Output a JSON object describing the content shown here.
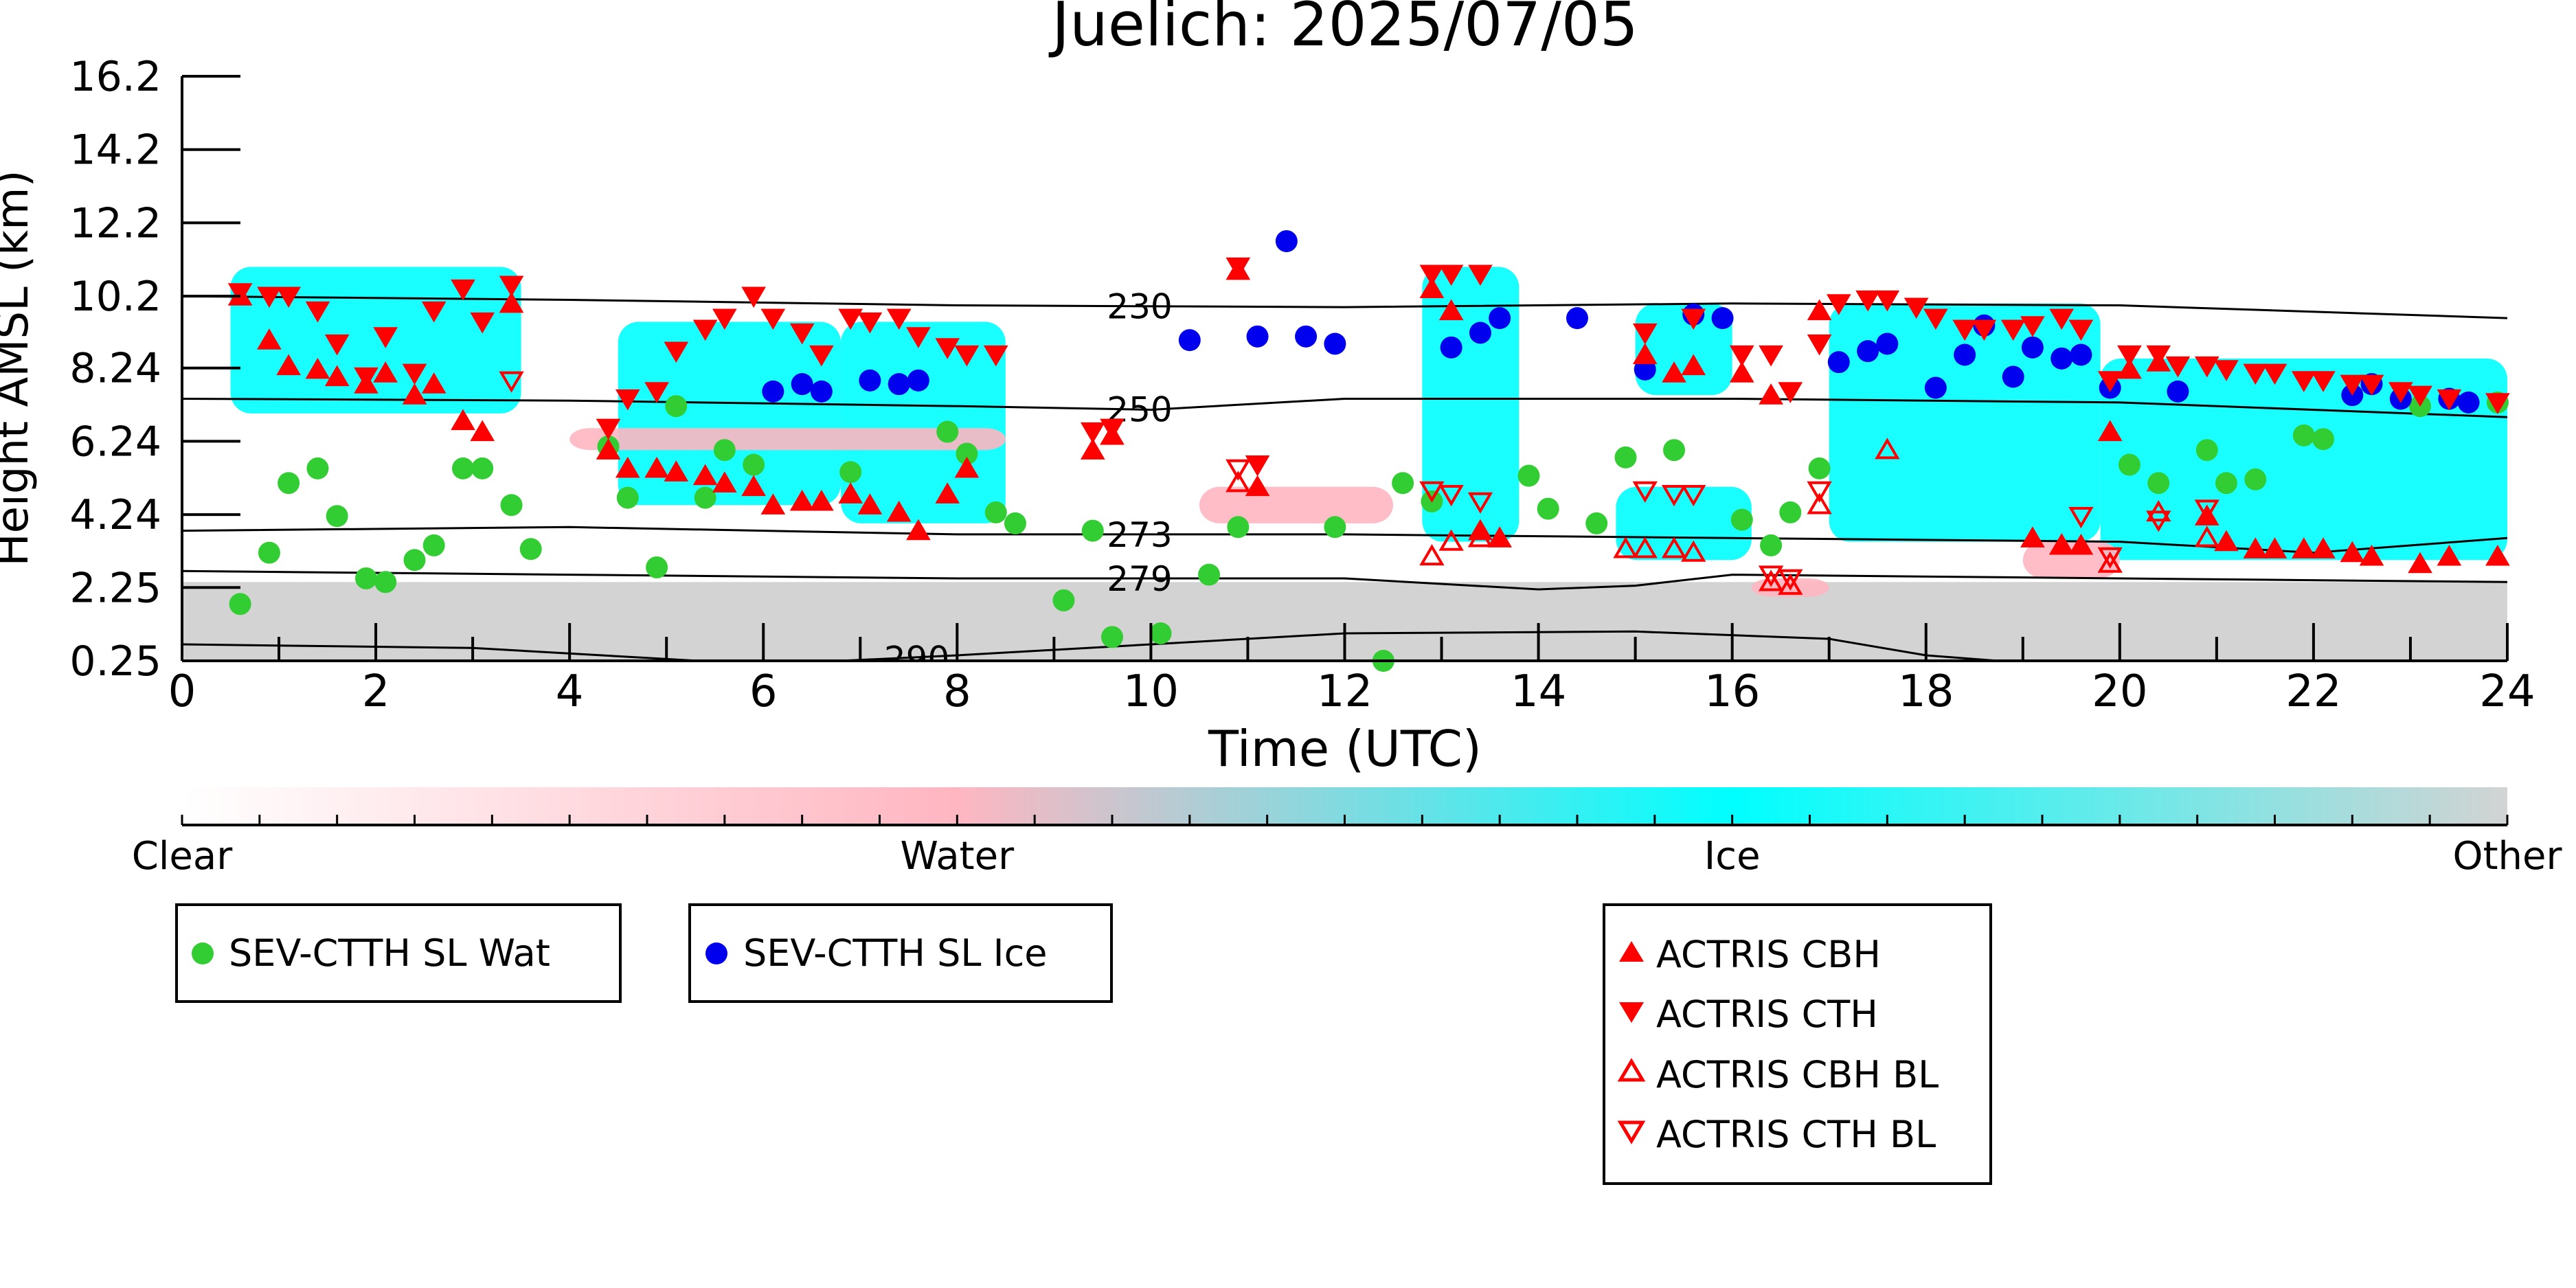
{
  "chart_data": {
    "type": "scatter",
    "title": "Juelich: 2025/07/05",
    "xlabel": "Time (UTC)",
    "ylabel": "Height AMSL (km)",
    "xlim": [
      0,
      24
    ],
    "ylim": [
      0.25,
      16.2
    ],
    "x_ticks": [
      0,
      2,
      4,
      6,
      8,
      10,
      12,
      14,
      16,
      18,
      20,
      22,
      24
    ],
    "y_ticks": [
      "0.25",
      "2.25",
      "4.24",
      "6.24",
      "8.24",
      "10.2",
      "12.2",
      "14.2",
      "16.2"
    ],
    "colorbar": {
      "labels": [
        "Clear",
        "Water",
        "Ice",
        "Other"
      ],
      "colors": [
        "#ffffff",
        "#ffb6c1",
        "#00ffff",
        "#d3d3d3"
      ]
    },
    "isotherms": [
      {
        "label": "230",
        "label_x": 9.6,
        "x": [
          0,
          4,
          8,
          12,
          16,
          20,
          24
        ],
        "y": [
          10.2,
          10.1,
          9.95,
          9.9,
          10.0,
          9.95,
          9.6
        ]
      },
      {
        "label": "250",
        "label_x": 9.6,
        "x": [
          0,
          4,
          8,
          10,
          12,
          16,
          20,
          24
        ],
        "y": [
          7.4,
          7.35,
          7.2,
          7.1,
          7.4,
          7.4,
          7.3,
          6.9
        ]
      },
      {
        "label": "273",
        "label_x": 9.6,
        "x": [
          0,
          4,
          8,
          12,
          16,
          20,
          22,
          24
        ],
        "y": [
          3.8,
          3.9,
          3.7,
          3.7,
          3.6,
          3.5,
          3.2,
          3.6
        ]
      },
      {
        "label": "279",
        "label_x": 9.6,
        "x": [
          0,
          4,
          8,
          12,
          14,
          15,
          16,
          20,
          24
        ],
        "y": [
          2.7,
          2.6,
          2.5,
          2.5,
          2.2,
          2.3,
          2.6,
          2.5,
          2.4
        ]
      },
      {
        "label": "290",
        "label_x": 7.3,
        "x": [
          0,
          3,
          6,
          8,
          12,
          15,
          17,
          18,
          19,
          20
        ],
        "y": [
          0.7,
          0.6,
          0.15,
          0.4,
          1.0,
          1.05,
          0.85,
          0.4,
          0.2,
          0.0
        ]
      }
    ],
    "cloud_regions": [
      {
        "class": "Other",
        "x": [
          0,
          24
        ],
        "y": [
          0.25,
          2.4
        ]
      },
      {
        "class": "Ice",
        "x": [
          0.5,
          3.5
        ],
        "y": [
          7.0,
          11.0
        ]
      },
      {
        "class": "Ice",
        "x": [
          4.5,
          6.8
        ],
        "y": [
          4.5,
          9.5
        ]
      },
      {
        "class": "Ice",
        "x": [
          6.8,
          8.5
        ],
        "y": [
          4.0,
          9.5
        ]
      },
      {
        "class": "Ice",
        "x": [
          12.8,
          13.8
        ],
        "y": [
          3.5,
          11.0
        ]
      },
      {
        "class": "Ice",
        "x": [
          14.8,
          16.2
        ],
        "y": [
          3.0,
          5.0
        ]
      },
      {
        "class": "Ice",
        "x": [
          15.0,
          16.0
        ],
        "y": [
          7.5,
          10.0
        ]
      },
      {
        "class": "Ice",
        "x": [
          17.0,
          19.8
        ],
        "y": [
          3.5,
          10.0
        ]
      },
      {
        "class": "Ice",
        "x": [
          19.8,
          24.0
        ],
        "y": [
          3.0,
          8.5
        ]
      },
      {
        "class": "Water",
        "x": [
          4.0,
          8.5
        ],
        "y": [
          6.0,
          6.6
        ]
      },
      {
        "class": "Water",
        "x": [
          10.5,
          12.5
        ],
        "y": [
          4.0,
          5.0
        ]
      },
      {
        "class": "Water",
        "x": [
          16.2,
          17.0
        ],
        "y": [
          2.0,
          2.5
        ]
      },
      {
        "class": "Water",
        "x": [
          19.0,
          20.0
        ],
        "y": [
          2.5,
          3.5
        ]
      }
    ],
    "series": [
      {
        "name": "SEV-CTTH SL Wat",
        "color": "#32cd32",
        "marker": "circle",
        "x": [
          0.6,
          0.9,
          1.1,
          1.4,
          1.6,
          1.9,
          2.1,
          2.4,
          2.6,
          2.9,
          3.1,
          3.4,
          3.6,
          4.4,
          4.6,
          4.9,
          5.1,
          5.4,
          5.6,
          5.9,
          6.9,
          7.9,
          8.1,
          8.4,
          8.6,
          9.1,
          9.4,
          9.6,
          10.1,
          10.6,
          10.9,
          11.9,
          12.4,
          12.6,
          12.9,
          13.9,
          14.1,
          14.6,
          14.9,
          15.4,
          16.1,
          16.4,
          16.6,
          16.9,
          20.1,
          20.4,
          20.9,
          21.1,
          21.4,
          21.9,
          22.1,
          23.1,
          23.9
        ],
        "y": [
          1.8,
          3.2,
          5.1,
          5.5,
          4.2,
          2.5,
          2.4,
          3.0,
          3.4,
          5.5,
          5.5,
          4.5,
          3.3,
          6.1,
          4.7,
          2.8,
          7.2,
          4.7,
          6.0,
          5.6,
          5.4,
          6.5,
          5.9,
          4.3,
          4.0,
          1.9,
          3.8,
          0.9,
          1.0,
          2.6,
          3.9,
          3.9,
          0.25,
          5.1,
          4.6,
          5.3,
          4.4,
          4.0,
          5.8,
          6.0,
          4.1,
          3.4,
          4.3,
          5.5,
          5.6,
          5.1,
          6.0,
          5.1,
          5.2,
          6.4,
          6.3,
          7.2,
          7.3
        ]
      },
      {
        "name": "SEV-CTTH SL Ice",
        "color": "#0000ee",
        "marker": "circle",
        "x": [
          6.1,
          6.4,
          6.6,
          7.1,
          7.4,
          7.6,
          10.4,
          11.1,
          11.4,
          11.6,
          11.9,
          13.1,
          13.4,
          13.6,
          14.4,
          15.1,
          15.6,
          15.9,
          17.1,
          17.4,
          17.6,
          18.1,
          18.4,
          18.6,
          18.9,
          19.1,
          19.4,
          19.6,
          19.9,
          20.6,
          22.4,
          22.6,
          22.9,
          23.4,
          23.6
        ],
        "y": [
          7.6,
          7.8,
          7.6,
          7.9,
          7.8,
          7.9,
          9.0,
          9.1,
          11.7,
          9.1,
          8.9,
          8.8,
          9.2,
          9.6,
          9.6,
          8.2,
          9.7,
          9.6,
          8.4,
          8.7,
          8.9,
          7.7,
          8.6,
          9.4,
          8.0,
          8.8,
          8.5,
          8.6,
          7.7,
          7.6,
          7.5,
          7.8,
          7.4,
          7.4,
          7.3
        ]
      },
      {
        "name": "ACTRIS CBH",
        "color": "#ff0000",
        "marker": "triangle-up",
        "x": [
          0.6,
          0.9,
          1.1,
          1.4,
          1.6,
          1.9,
          2.1,
          2.4,
          2.6,
          2.9,
          3.1,
          3.4,
          4.4,
          4.6,
          4.9,
          5.1,
          5.4,
          5.6,
          5.9,
          6.1,
          6.4,
          6.6,
          6.9,
          7.1,
          7.4,
          7.6,
          7.9,
          8.1,
          9.4,
          9.6,
          10.9,
          11.1,
          12.9,
          13.1,
          13.4,
          13.6,
          15.1,
          15.4,
          15.6,
          16.1,
          16.4,
          16.9,
          19.1,
          19.4,
          19.6,
          19.9,
          20.1,
          20.4,
          20.9,
          21.1,
          21.4,
          21.6,
          21.9,
          22.1,
          22.4,
          22.6,
          23.1,
          23.4,
          23.9
        ],
        "y": [
          10.2,
          9.0,
          8.3,
          8.2,
          8.0,
          7.8,
          8.1,
          7.5,
          7.8,
          6.8,
          6.5,
          10.0,
          6.0,
          5.5,
          5.5,
          5.4,
          5.3,
          5.1,
          5.0,
          4.5,
          4.6,
          4.6,
          4.8,
          4.5,
          4.3,
          3.8,
          4.8,
          5.5,
          6.0,
          6.4,
          10.9,
          5.0,
          10.4,
          9.8,
          3.8,
          3.6,
          8.6,
          8.1,
          8.3,
          8.1,
          7.5,
          9.8,
          3.6,
          3.4,
          3.4,
          6.5,
          8.2,
          8.4,
          4.2,
          3.5,
          3.3,
          3.3,
          3.3,
          3.3,
          3.2,
          3.1,
          2.9,
          3.1,
          3.1
        ]
      },
      {
        "name": "ACTRIS CTH",
        "color": "#ff0000",
        "marker": "triangle-down",
        "x": [
          0.6,
          0.9,
          1.1,
          1.4,
          1.6,
          1.9,
          2.1,
          2.4,
          2.6,
          2.9,
          3.1,
          3.4,
          4.4,
          4.6,
          4.9,
          5.1,
          5.4,
          5.6,
          5.9,
          6.1,
          6.4,
          6.6,
          6.9,
          7.1,
          7.4,
          7.6,
          7.9,
          8.1,
          8.4,
          9.4,
          9.6,
          10.9,
          11.1,
          12.9,
          13.1,
          13.4,
          15.1,
          15.6,
          16.1,
          16.4,
          16.6,
          16.9,
          17.1,
          17.4,
          17.6,
          17.9,
          18.1,
          18.4,
          18.6,
          18.9,
          19.1,
          19.4,
          19.6,
          19.9,
          20.1,
          20.4,
          20.6,
          20.9,
          21.1,
          21.4,
          21.6,
          21.9,
          22.1,
          22.4,
          22.6,
          22.9,
          23.1,
          23.4,
          23.9
        ],
        "y": [
          10.3,
          10.2,
          10.2,
          9.8,
          8.9,
          8.0,
          9.1,
          8.1,
          9.8,
          10.4,
          9.5,
          10.5,
          6.6,
          7.4,
          7.6,
          8.7,
          9.3,
          9.6,
          10.2,
          9.6,
          9.2,
          8.6,
          9.6,
          9.5,
          9.6,
          9.1,
          8.8,
          8.6,
          8.6,
          6.5,
          6.6,
          11.0,
          5.6,
          10.8,
          10.8,
          10.8,
          9.2,
          9.6,
          8.6,
          8.6,
          7.6,
          8.9,
          10.0,
          10.1,
          10.1,
          9.9,
          9.6,
          9.3,
          9.3,
          9.3,
          9.4,
          9.6,
          9.3,
          7.9,
          8.6,
          8.6,
          8.3,
          8.3,
          8.2,
          8.1,
          8.1,
          7.9,
          7.9,
          7.8,
          7.8,
          7.6,
          7.5,
          7.4,
          7.3
        ]
      },
      {
        "name": "ACTRIS CBH BL",
        "color": "#ff0000",
        "marker": "triangle-up-open",
        "x": [
          10.9,
          12.9,
          13.1,
          13.4,
          14.9,
          15.1,
          15.4,
          15.6,
          16.4,
          16.6,
          16.9,
          17.6,
          19.4,
          19.9,
          20.4,
          20.9
        ],
        "y": [
          5.1,
          3.1,
          3.5,
          3.6,
          3.3,
          3.3,
          3.3,
          3.2,
          2.4,
          2.3,
          4.5,
          6.0,
          3.4,
          2.9,
          4.3,
          3.6
        ]
      },
      {
        "name": "ACTRIS CTH BL",
        "color": "#ff0000",
        "marker": "triangle-down-open",
        "x": [
          3.4,
          10.9,
          12.9,
          13.1,
          13.4,
          15.1,
          15.4,
          15.6,
          16.4,
          16.6,
          16.9,
          19.6,
          19.9,
          20.4,
          20.9
        ],
        "y": [
          7.9,
          5.5,
          4.9,
          4.8,
          4.6,
          4.9,
          4.8,
          4.8,
          2.6,
          2.5,
          4.9,
          4.2,
          3.1,
          4.1,
          4.4
        ]
      }
    ],
    "legends": [
      {
        "entries": [
          "SEV-CTTH SL Wat"
        ]
      },
      {
        "entries": [
          "SEV-CTTH SL Ice"
        ]
      },
      {
        "entries": [
          "ACTRIS CBH",
          "ACTRIS CTH",
          "ACTRIS CBH BL",
          "ACTRIS CTH BL"
        ]
      }
    ]
  }
}
